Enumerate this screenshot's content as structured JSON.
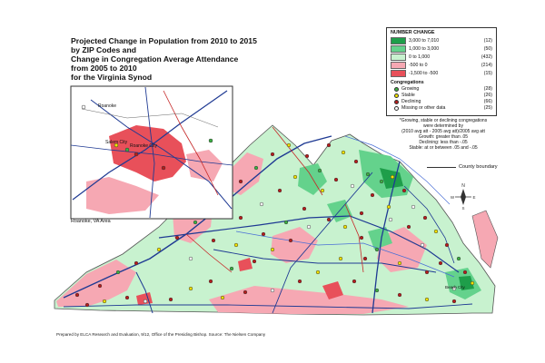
{
  "title_lines": [
    "Projected Change in Population from 2010 to 2015",
    "by ZIP Codes and",
    "Change in Congregation Average Attendance",
    "from 2005 to 2010",
    "for the Virginia Synod"
  ],
  "legend": {
    "heading": "NUMBER CHANGE",
    "classes": [
      {
        "range": "3,000 to 7,010",
        "count": "(12)",
        "color": "#1e9e4a"
      },
      {
        "range": "1,000 to 3,000",
        "count": "(50)",
        "color": "#64d28c"
      },
      {
        "range": "0 to 1,000",
        "count": "(432)",
        "color": "#c8f2cf"
      },
      {
        "range": "-500 to 0",
        "count": "(214)",
        "color": "#f6a8b3"
      },
      {
        "range": "-1,500 to -500",
        "count": "(15)",
        "color": "#e8505a"
      }
    ],
    "congregations_heading": "Congregations",
    "congregations": [
      {
        "label": "Growing",
        "count": "(28)",
        "color": "#3cb043"
      },
      {
        "label": "Stable",
        "count": "(26)",
        "color": "#f2e200"
      },
      {
        "label": "Declining",
        "count": "(66)",
        "color": "#b71c1c"
      },
      {
        "label": "Missing or other data",
        "count": "(25)",
        "color": "#ffffff"
      }
    ]
  },
  "note_lines": [
    "*Growing, stable or declining congregations",
    "were determined by",
    "(2010 avg att - 2005 avg att)/2005 avg att",
    "Growth: greater than .05",
    "Declining: less than -.05",
    "Stable: at or between .05 and -.05"
  ],
  "county_boundary_label": "County boundary",
  "inset_caption": "Roanoke, VA Area",
  "inset_labels": [
    "Roanoke",
    "Salem City",
    "Roanoke City"
  ],
  "credit": "Prepared by ELCA Research and Evaluation, 9/12, Office of the Presiding Bishop. Source: The Nielsen Company",
  "map_labels": {
    "city_label": "Beach City",
    "north_arrow": "N",
    "compass": [
      "W",
      "E",
      "S"
    ]
  },
  "colors": {
    "green_dark": "#1e9e4a",
    "green_mid": "#64d28c",
    "green_light": "#c8f2cf",
    "pink": "#f6a8b3",
    "red": "#e8505a",
    "road": "#1f3a93",
    "road_red": "#c62828",
    "water": "#4a6fd6"
  }
}
